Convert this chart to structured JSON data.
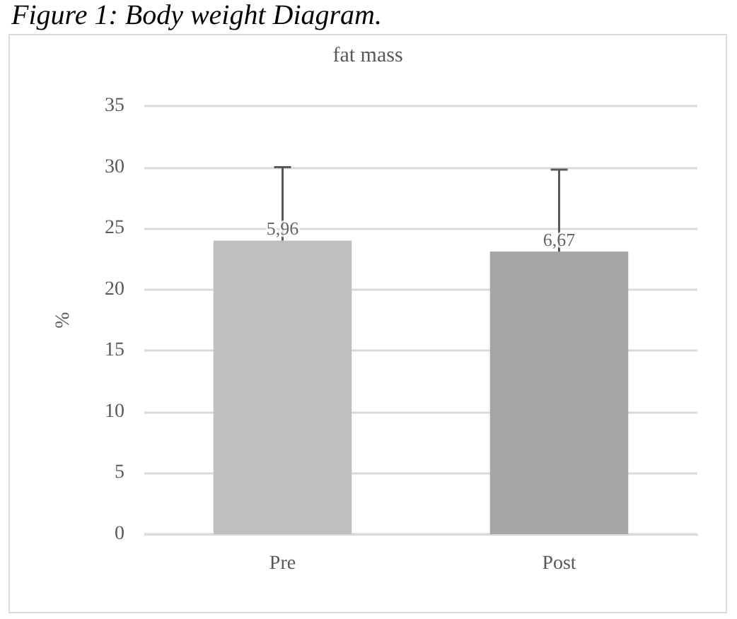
{
  "chart_data": {
    "type": "bar",
    "title": "Figure 1: Body weight Diagram.",
    "subtitle": "fat mass",
    "ylabel": "%",
    "categories": [
      "Pre",
      "Post"
    ],
    "values": [
      24.0,
      23.1
    ],
    "colors": [
      "#bfbfbf",
      "#a5a5a5"
    ],
    "errors": [
      [
        24.0,
        30.0
      ],
      [
        23.1,
        29.8
      ]
    ],
    "annotations": [
      {
        "text": "5,96",
        "x": "Pre",
        "y": 24.0
      },
      {
        "text": "6,67",
        "x": "Post",
        "y": 23.1
      }
    ],
    "ylim": [
      0,
      35
    ],
    "yticks": [
      0,
      5,
      10,
      15,
      20,
      25,
      30,
      35
    ],
    "grid": "y"
  }
}
